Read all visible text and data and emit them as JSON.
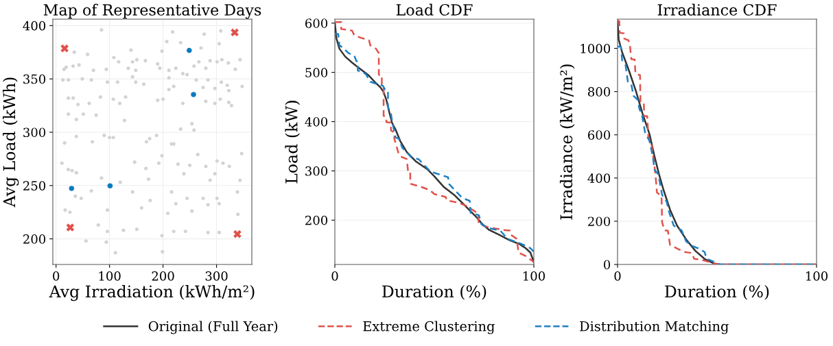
{
  "chart_data": [
    {
      "type": "scatter",
      "title": "Map of Representative Days",
      "xlabel": "Avg Irradiation (kWh/m²)",
      "ylabel": "Avg Load (kWh)",
      "xlim": [
        -6,
        366
      ],
      "ylim": [
        176,
        406
      ],
      "xticks": [
        0,
        100,
        200,
        300
      ],
      "yticks": [
        200,
        250,
        300,
        350,
        400
      ],
      "grid": true,
      "series": [
        {
          "color": "#d3d3d3",
          "marker": "circle",
          "x": [
            85,
            218,
            308,
            277,
            34,
            140,
            198,
            207,
            305,
            233,
            271,
            70,
            15,
            19,
            32,
            43,
            59,
            94,
            108,
            117,
            143,
            151,
            167,
            135,
            149,
            190,
            194,
            211,
            224,
            237,
            258,
            267,
            280,
            288,
            301,
            310,
            322,
            335,
            344,
            348,
            13,
            23,
            49,
            66,
            96,
            115,
            143,
            149,
            164,
            211,
            220,
            245,
            262,
            275,
            284,
            297,
            309,
            320,
            323,
            23,
            32,
            41,
            62,
            83,
            107,
            119,
            130,
            190,
            200,
            211,
            237,
            280,
            297,
            307,
            323,
            328,
            23,
            51,
            75,
            128,
            233,
            254,
            38,
            258,
            16,
            38,
            68,
            90,
            100,
            107,
            169,
            175,
            188,
            216,
            220,
            11,
            23,
            30,
            38,
            85,
            120,
            147,
            168,
            173,
            192,
            198,
            228,
            239,
            250,
            265,
            280,
            288,
            297,
            301,
            312,
            324,
            339,
            347,
            344,
            36,
            47,
            66,
            143,
            176,
            216,
            224,
            245,
            275,
            284,
            301,
            305,
            340,
            17,
            26,
            79,
            126,
            151,
            242,
            284,
            305,
            56,
            94,
            111,
            198,
            199,
            96,
            220,
            96,
            160,
            209,
            254
          ],
          "values": [
            396,
            394,
            395,
            392,
            375,
            377,
            376,
            385,
            383,
            384,
            379,
            358,
            359,
            361,
            362,
            363,
            373,
            359,
            370,
            366,
            366,
            368,
            367,
            360,
            358,
            364,
            360,
            358,
            360,
            355,
            362,
            366,
            360,
            367,
            366,
            368,
            365,
            359,
            368,
            343,
            349,
            349,
            350,
            349,
            347,
            347,
            352,
            347,
            345,
            351,
            343,
            354,
            349,
            342,
            349,
            341,
            347,
            344,
            339,
            332,
            332,
            326,
            327,
            333,
            331,
            327,
            333,
            330,
            331,
            340,
            327,
            329,
            327,
            331,
            328,
            325,
            317,
            317,
            316,
            311,
            303,
            308,
            312,
            302,
            290,
            296,
            291,
            297,
            295,
            295,
            291,
            294,
            297,
            289,
            289,
            271,
            265,
            264,
            262,
            257,
            253,
            272,
            266,
            256,
            271,
            278,
            270,
            261,
            269,
            279,
            268,
            255,
            261,
            273,
            271,
            268,
            244,
            280,
            255,
            240,
            238,
            245,
            244,
            236,
            244,
            233,
            238,
            238,
            232,
            238,
            233,
            223,
            227,
            225,
            213,
            208,
            209,
            207,
            206,
            206,
            198,
            197,
            187,
            203,
            188,
            207,
            207,
            227,
            229,
            224,
            226
          ]
        },
        {
          "color": "#e0524c",
          "marker": "cross",
          "x": [
            16,
            334,
            26.5,
            339
          ],
          "values": [
            378.6,
            393.6,
            210.7,
            204.5
          ]
        },
        {
          "color": "#0a7bc0",
          "marker": "circle",
          "x": [
            249,
            257,
            29,
            101
          ],
          "values": [
            376.7,
            335.3,
            247.3,
            249.7
          ]
        }
      ]
    },
    {
      "type": "line",
      "title": "Load CDF",
      "xlabel": "Duration (%)",
      "ylabel": "Load (kW)",
      "xlim": [
        0,
        100
      ],
      "ylim": [
        110,
        608
      ],
      "xticks": [
        0,
        100
      ],
      "yticks": [
        200,
        300,
        400,
        500,
        600
      ],
      "grid": "y",
      "legend": "bottom",
      "series": [
        {
          "name": "Original (Full Year)",
          "color": "#333333",
          "line_style": "solid",
          "x": [
            0,
            0.8,
            2.3,
            5.2,
            8.6,
            12.1,
            16.7,
            20,
            23,
            24.5,
            25.9,
            27,
            28.7,
            30.5,
            32.8,
            36.2,
            40.8,
            46.6,
            50,
            54.6,
            60.3,
            63.8,
            67.2,
            70.7,
            74.1,
            77.6,
            82.2,
            88,
            92.5,
            95.9,
            98.3,
            100
          ],
          "values": [
            601,
            569,
            548,
            532,
            520,
            509,
            495,
            481,
            469,
            460,
            444,
            425,
            398,
            384,
            361,
            338,
            319,
            303,
            289,
            268,
            250,
            236,
            222,
            208,
            192,
            180,
            171,
            159,
            152,
            143,
            134,
            115
          ]
        },
        {
          "name": "Extreme Clustering",
          "color": "#e0524c",
          "line_style": "dashed",
          "x": [
            0,
            3.2,
            3.2,
            8.6,
            9.8,
            12.6,
            17.2,
            17.8,
            20.7,
            22.1,
            22.1,
            23.6,
            23.6,
            24.5,
            24.5,
            25.9,
            25.9,
            28.2,
            28.2,
            29.9,
            29.9,
            32.2,
            33.7,
            36.2,
            36.8,
            37.9,
            37.9,
            43.1,
            47.7,
            50,
            55.7,
            56.3,
            61.5,
            66.1,
            70.7,
            71.8,
            72.4,
            77.6,
            82.2,
            84.5,
            87.9,
            88.2,
            91.4,
            92.3,
            96,
            98.3,
            100
          ],
          "values": [
            602,
            602,
            588,
            585,
            575,
            571,
            565,
            555,
            548,
            539,
            495,
            494,
            472,
            469,
            412,
            409,
            399,
            398,
            382,
            378,
            365,
            333,
            328,
            324,
            298,
            298,
            274,
            268,
            261,
            253,
            247,
            240,
            236,
            229,
            217,
            210,
            192,
            185,
            182,
            180,
            179,
            171,
            162,
            134,
            127,
            120,
            115
          ]
        },
        {
          "name": "Distribution Matching",
          "color": "#1f80c4",
          "line_style": "dashed",
          "x": [
            0,
            1.7,
            2.3,
            4,
            6.9,
            9.8,
            10.8,
            11.5,
            11.5,
            15.5,
            17.8,
            21.3,
            24.1,
            25.3,
            26.7,
            26.7,
            28.2,
            28.7,
            30.5,
            32.2,
            33.9,
            38.5,
            42,
            47.7,
            50,
            56.9,
            57.5,
            63.8,
            67.8,
            68.2,
            72.4,
            73.6,
            76.4,
            83.3,
            86.8,
            93.7,
            98.3,
            100
          ],
          "values": [
            578,
            578,
            555,
            550,
            539,
            534,
            523,
            522,
            504,
            497,
            481,
            476,
            473,
            465,
            463,
            430,
            416,
            402,
            368,
            365,
            347,
            327,
            324,
            300,
            296,
            287,
            273,
            246,
            239,
            215,
            210,
            192,
            185,
            178,
            162,
            152,
            143,
            136
          ]
        }
      ]
    },
    {
      "type": "line",
      "title": "Irradiance CDF",
      "xlabel": "Duration (%)",
      "ylabel": "Irradiance (kW/m²)",
      "xlim": [
        0,
        100
      ],
      "ylim": [
        0,
        1135
      ],
      "xticks": [
        0,
        100
      ],
      "yticks": [
        0,
        200,
        400,
        600,
        800,
        1000
      ],
      "grid": "y",
      "series": [
        {
          "color": "#333333",
          "line_style": "solid",
          "x": [
            0,
            0.6,
            2.3,
            5.7,
            9.2,
            12.6,
            16.1,
            18.4,
            20.7,
            23,
            26.4,
            29.9,
            34.5,
            39.1,
            43.7,
            48.3,
            51.7,
            100
          ],
          "values": [
            1125,
            1040,
            982,
            898,
            803,
            697,
            602,
            507,
            422,
            348,
            253,
            180,
            116,
            63,
            26,
            5,
            0,
            0
          ]
        },
        {
          "color": "#e0524c",
          "line_style": "dashed",
          "x": [
            0,
            0.9,
            1.1,
            3.2,
            3.4,
            5.5,
            6.3,
            6.9,
            8.6,
            9,
            11.3,
            11.5,
            13.2,
            13.4,
            14.9,
            15.5,
            17.2,
            18.4,
            19,
            19.8,
            22.1,
            22.4,
            23.6,
            25.3,
            26.4,
            29.9,
            33.3,
            37.4,
            38.5,
            42.5,
            45.4,
            49.4,
            51.7,
            100
          ],
          "values": [
            1130,
            1125,
            1072,
            1069,
            1045,
            1037,
            1008,
            950,
            948,
            882,
            876,
            755,
            752,
            686,
            686,
            591,
            549,
            465,
            422,
            333,
            317,
            195,
            158,
            156,
            90,
            74,
            58,
            53,
            26,
            21,
            13,
            2,
            0,
            0
          ]
        },
        {
          "color": "#1f80c4",
          "line_style": "dashed",
          "x": [
            0,
            1.7,
            2.3,
            4,
            5.2,
            6.9,
            8,
            10.3,
            10.9,
            12.4,
            13.8,
            16.1,
            17.8,
            18.6,
            20.5,
            22.4,
            24.7,
            25.9,
            28.2,
            32.2,
            34.5,
            37.9,
            40.8,
            43.7,
            44.8,
            48.9,
            50.6,
            100
          ],
          "values": [
            1008,
            1008,
            945,
            924,
            845,
            834,
            781,
            760,
            723,
            686,
            612,
            570,
            496,
            438,
            417,
            322,
            290,
            243,
            180,
            158,
            106,
            84,
            74,
            58,
            26,
            11,
            0,
            0
          ]
        }
      ]
    }
  ]
}
